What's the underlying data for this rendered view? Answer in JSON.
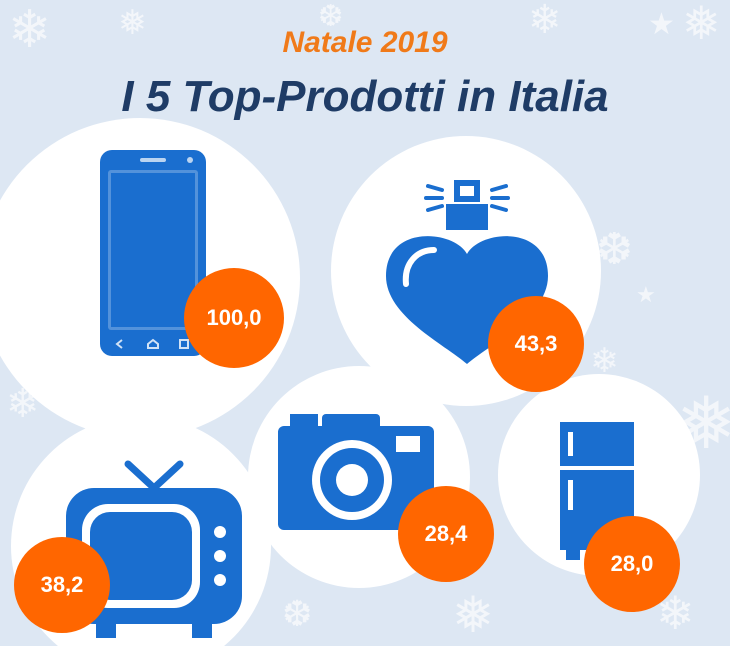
{
  "header": {
    "subtitle": "Natale 2019",
    "title": "I 5 Top-Prodotti in Italia"
  },
  "colors": {
    "background": "#dde7f3",
    "icon": "#1a6ecf",
    "badge": "#ff6600",
    "title": "#1f3c66",
    "subtitle": "#f07a19"
  },
  "chart_data": {
    "type": "bar",
    "title": "I 5 Top-Prodotti in Italia",
    "subtitle": "Natale 2019",
    "categories": [
      "smartphone-icon",
      "perfume-icon",
      "tv-icon",
      "camera-icon",
      "fridge-icon"
    ],
    "values": [
      100.0,
      43.3,
      38.2,
      28.4,
      28.0
    ],
    "labels": [
      "100,0",
      "43,3",
      "38,2",
      "28,4",
      "28,0"
    ]
  }
}
